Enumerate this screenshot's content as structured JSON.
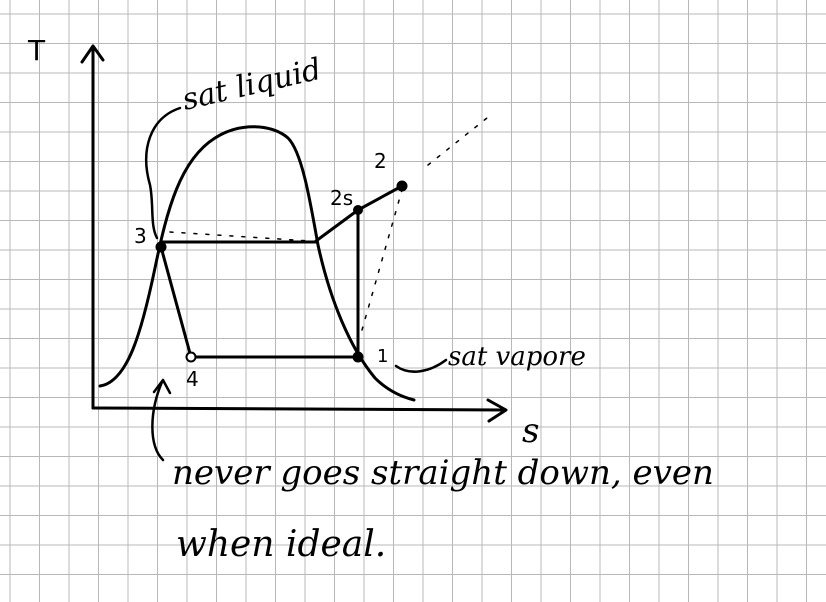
{
  "colors": {
    "grid": "#b8b8b8",
    "ink": "#000000",
    "background": "#ffffff"
  },
  "axes": {
    "y_label": "T",
    "x_label": "s"
  },
  "labels": {
    "sat_liquid": "sat liquid",
    "sat_vapor": "sat vapore",
    "note_line1": "never goes straight down, even",
    "note_line2": "when ideal."
  },
  "states": {
    "p1": "1",
    "p2": "2",
    "p2s": "2s",
    "p3": "3",
    "p4": "4"
  },
  "icons": [
    "y-axis-arrow-icon",
    "x-axis-arrow-icon",
    "annotation-arrow-icon"
  ]
}
